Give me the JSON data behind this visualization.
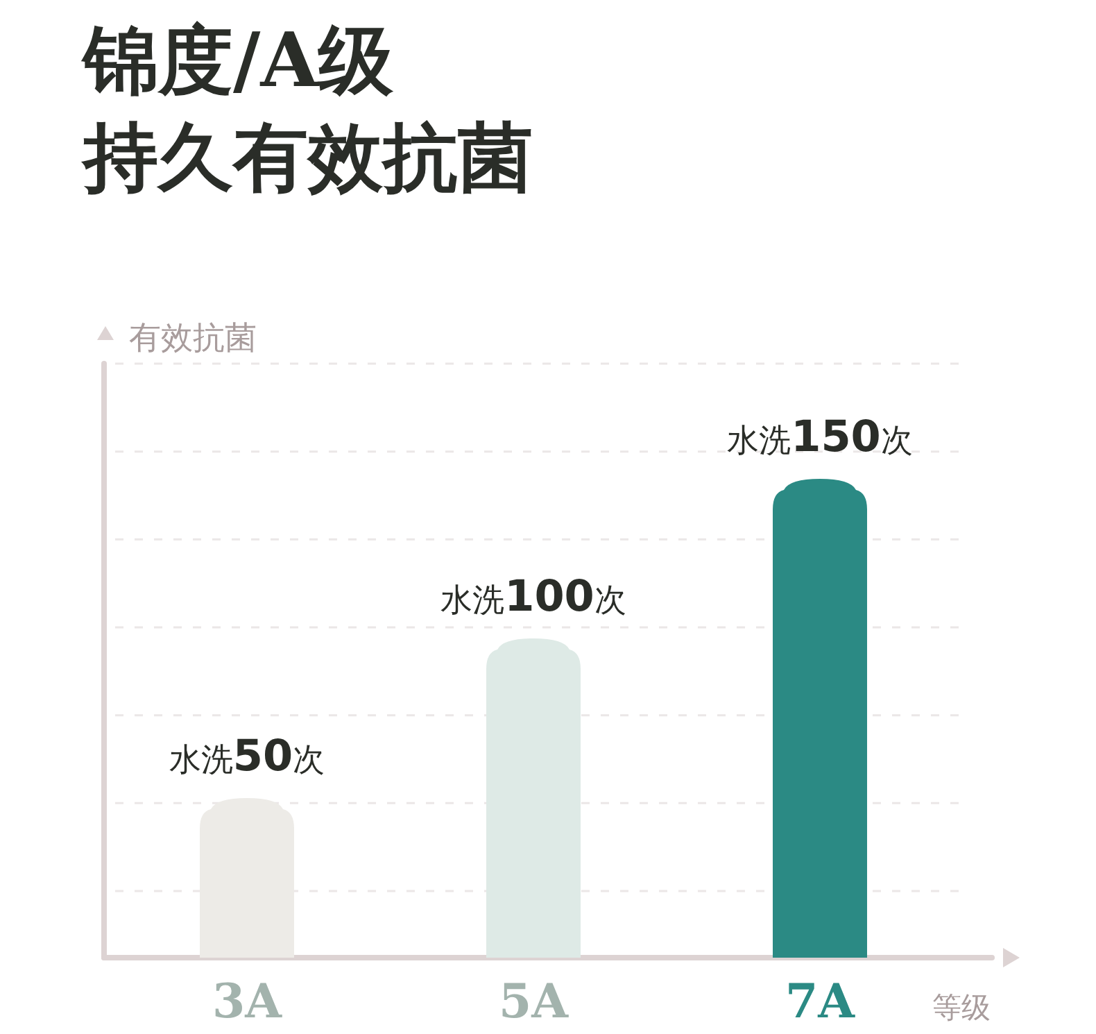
{
  "chart_data": {
    "type": "bar",
    "title": "锦度/A级",
    "subtitle": "持久有效抗菌",
    "ylabel": "有效抗菌",
    "xlabel": "等级",
    "categories": [
      "3A",
      "5A",
      "7A"
    ],
    "values": [
      50,
      100,
      150
    ],
    "colors": [
      "#edebe7",
      "#deeae6",
      "#2b8a84"
    ],
    "value_labels": [
      "水洗**50**次",
      "水洗**100**次",
      "水洗**150**次"
    ],
    "grid": "y"
  }
}
